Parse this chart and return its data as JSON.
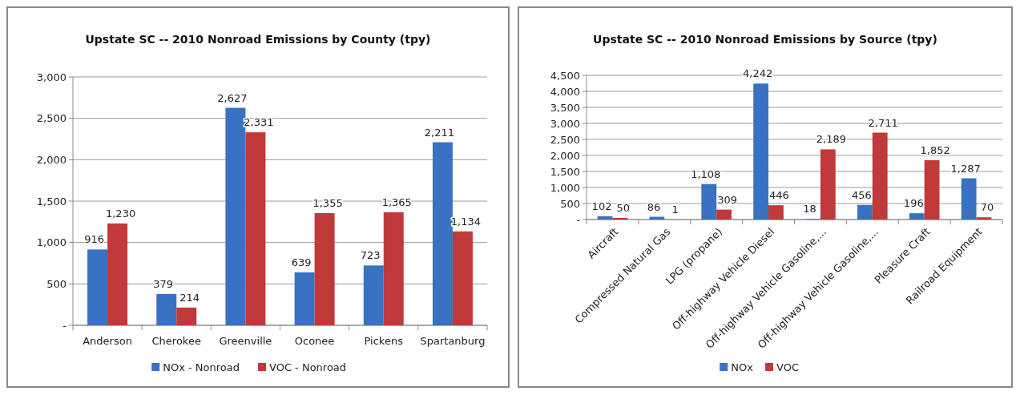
{
  "chart_data": [
    {
      "type": "bar",
      "title": "Upstate SC -- 2010  Nonroad Emissions by County (tpy)",
      "categories": [
        "Anderson",
        "Cherokee",
        "Greenville",
        "Oconee",
        "Pickens",
        "Spartanburg"
      ],
      "series": [
        {
          "name": "NOx - Nonroad",
          "color": "#3a72c2",
          "values": [
            916,
            379,
            2627,
            639,
            723,
            2211
          ],
          "value_labels": [
            "916",
            "379",
            "2,627",
            "639",
            "723",
            "2,211"
          ]
        },
        {
          "name": "VOC - Nonroad",
          "color": "#c0393b",
          "values": [
            1230,
            214,
            2331,
            1355,
            1365,
            1134
          ],
          "value_labels": [
            "1,230",
            "214",
            "2,331",
            "1,355",
            "1,365",
            "1,134"
          ]
        }
      ],
      "ylim": [
        0,
        3000
      ],
      "yticks": [
        {
          "value": 0,
          "label": "-"
        },
        {
          "value": 500,
          "label": "500"
        },
        {
          "value": 1000,
          "label": "1,000"
        },
        {
          "value": 1500,
          "label": "1,500"
        },
        {
          "value": 2000,
          "label": "2,000"
        },
        {
          "value": 2500,
          "label": "2,500"
        },
        {
          "value": 3000,
          "label": "3,000"
        }
      ],
      "grid": "y",
      "legend": "bottom"
    },
    {
      "type": "bar",
      "title": "Upstate SC -- 2010  Nonroad Emissions by Source (tpy)",
      "categories": [
        "Aircraft",
        "Compressed Natural Gas",
        "LPG (propane)",
        "Off-highway Vehicle Diesel",
        "Off-highway Vehicle Gasoline,...",
        "Off-highway Vehicle Gasoline,...",
        "Pleasure Craft",
        "Railroad Equipment"
      ],
      "series": [
        {
          "name": "NOx",
          "color": "#3a72c2",
          "values": [
            102,
            86,
            1108,
            4242,
            18,
            456,
            196,
            1287
          ],
          "value_labels": [
            "102",
            "86",
            "1,108",
            "4,242",
            "18",
            "456",
            "196",
            "1,287"
          ]
        },
        {
          "name": "VOC",
          "color": "#c0393b",
          "values": [
            50,
            1,
            309,
            446,
            2189,
            2711,
            1852,
            70
          ],
          "value_labels": [
            "50",
            "1",
            "309",
            "446",
            "2,189",
            "2,711",
            "1,852",
            "70"
          ]
        }
      ],
      "ylim": [
        0,
        4500
      ],
      "yticks": [
        {
          "value": 0,
          "label": "-"
        },
        {
          "value": 500,
          "label": "500"
        },
        {
          "value": 1000,
          "label": "1,000"
        },
        {
          "value": 1500,
          "label": "1,500"
        },
        {
          "value": 2000,
          "label": "2,000"
        },
        {
          "value": 2500,
          "label": "2,500"
        },
        {
          "value": 3000,
          "label": "3,000"
        },
        {
          "value": 3500,
          "label": "3,500"
        },
        {
          "value": 4000,
          "label": "4,000"
        },
        {
          "value": 4500,
          "label": "4,500"
        }
      ],
      "grid": "y",
      "legend": "bottom"
    }
  ]
}
